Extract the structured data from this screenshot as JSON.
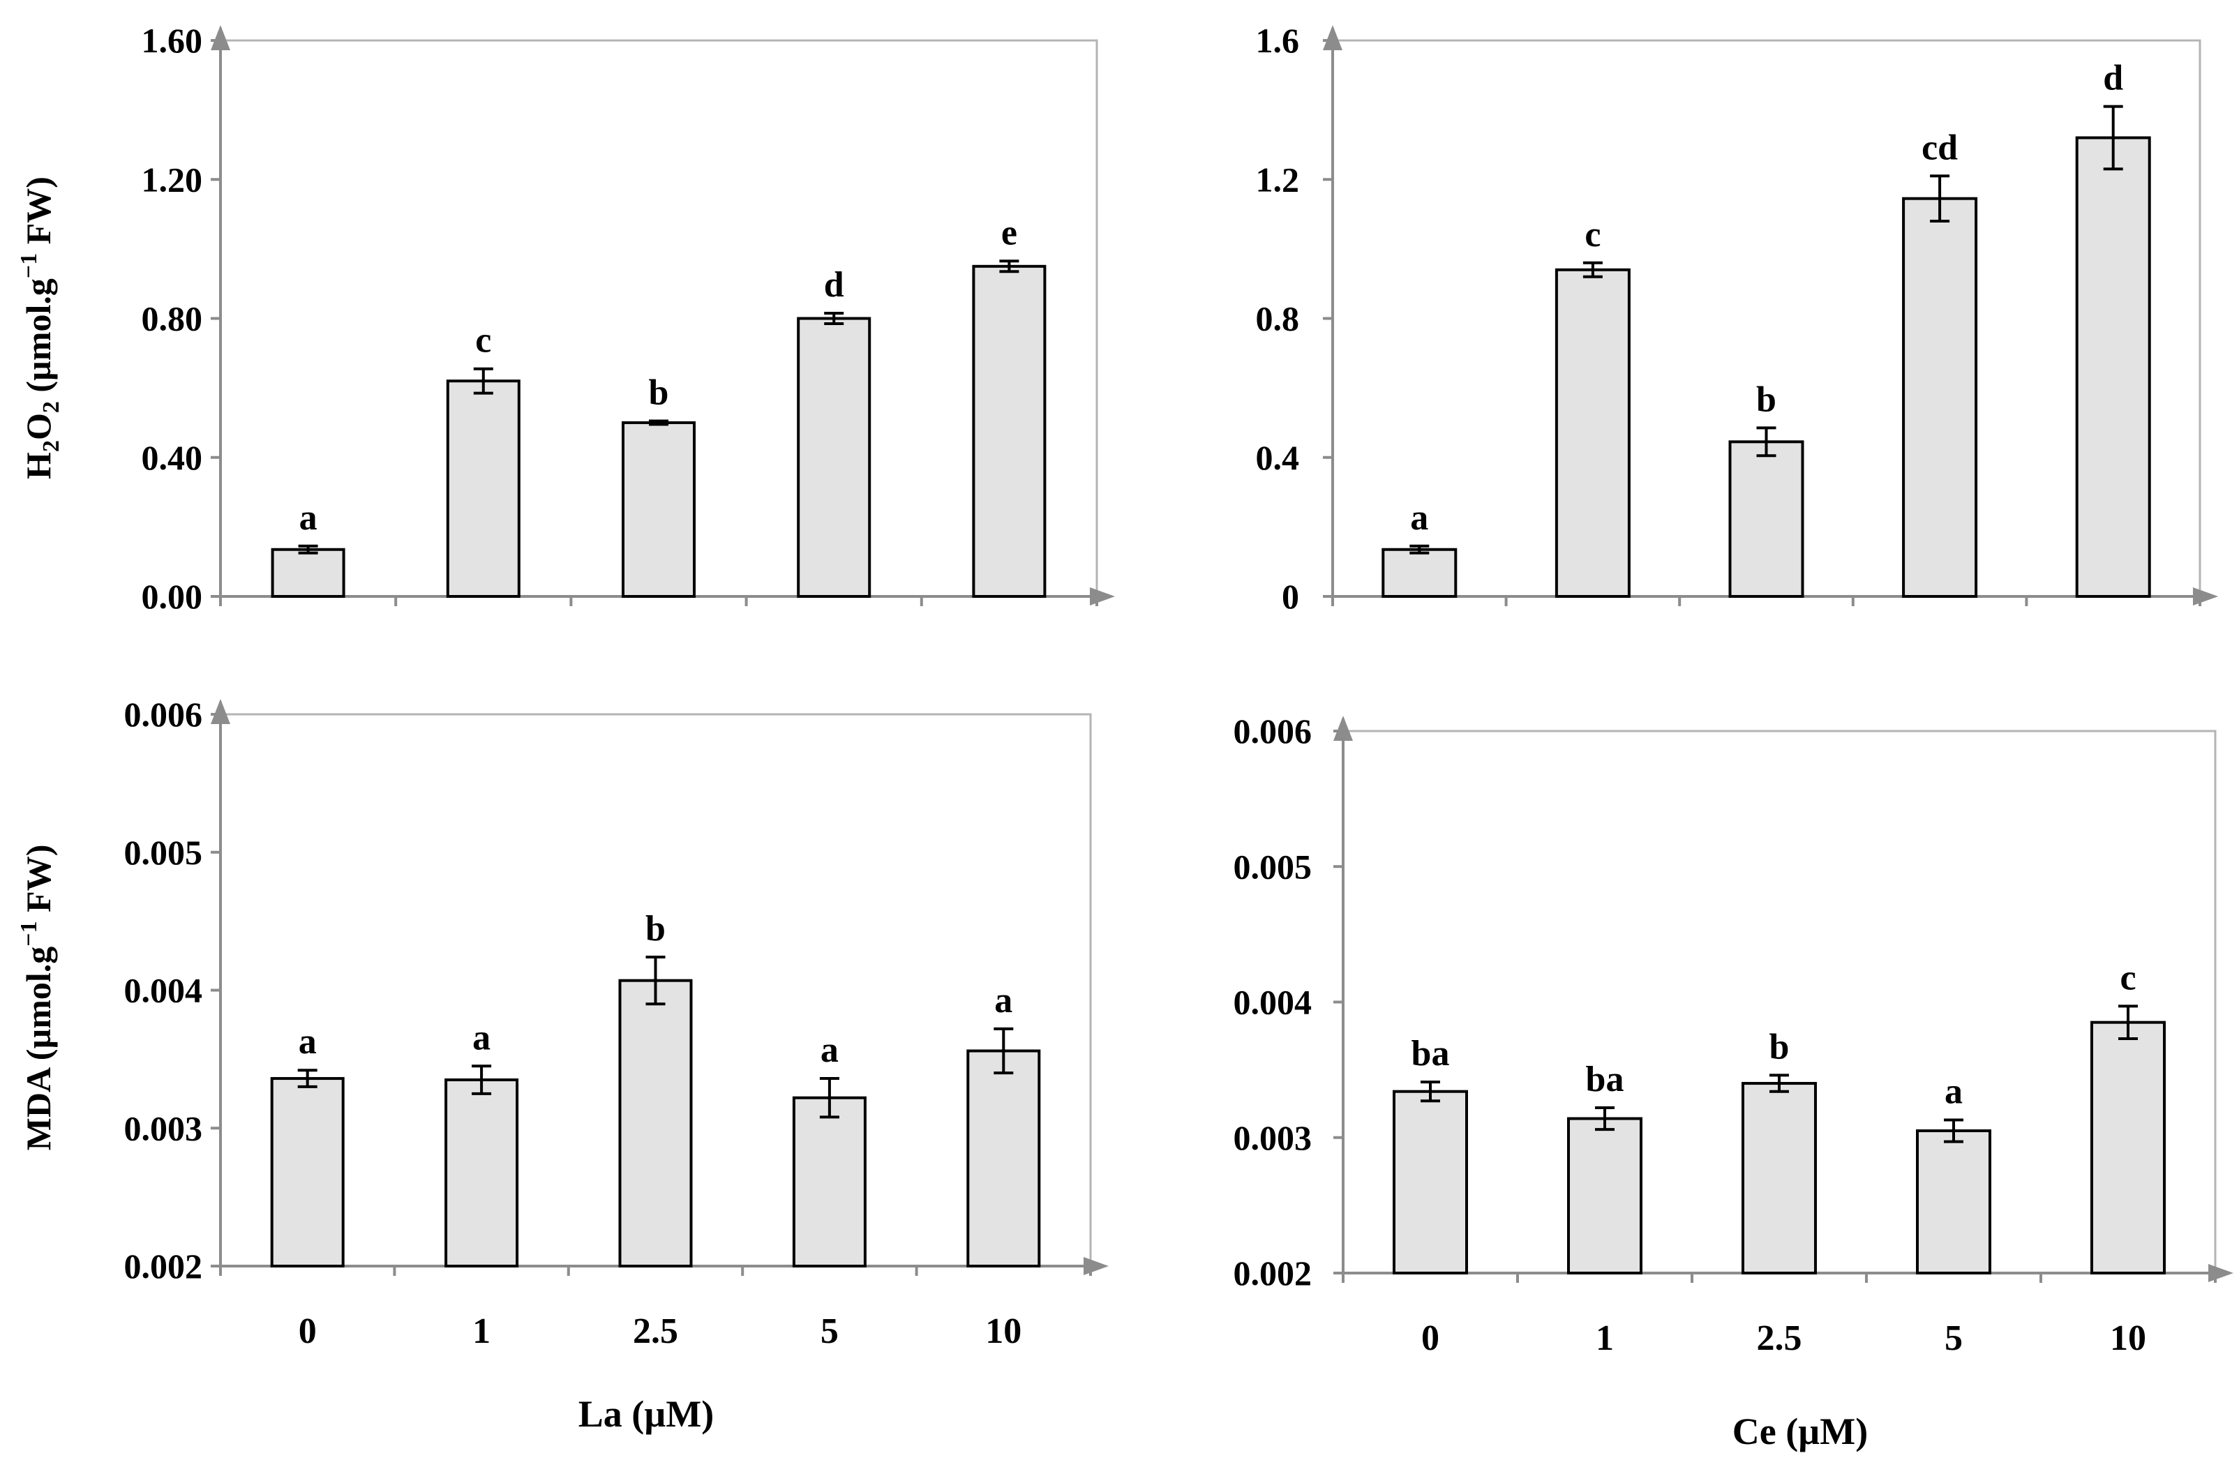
{
  "figure": {
    "x_titles": {
      "left": "La (µM)",
      "right": "Ce (µM)"
    },
    "y_titles": {
      "top": {
        "prefix": "H",
        "sub1": "2",
        "mid": "O",
        "sub2": "2",
        "main": " (µmol.g",
        "sup": "−1",
        "end": " FW)"
      },
      "bottom": {
        "main": "MDA (µmol.g",
        "sup": "−1",
        "end": " FW)"
      }
    },
    "colors": {
      "bar_fill": "#e3e3e3",
      "bar_stroke": "#000000",
      "axis": "#8c8c8c",
      "plot_border": "#b4b4b4"
    }
  },
  "chart_data": [
    {
      "id": "la-h2o2",
      "type": "bar",
      "title": "",
      "xlabel": "",
      "ylabel": "H2O2 (µmol.g−1 FW)",
      "categories": [
        "0",
        "1",
        "2.5",
        "5",
        "10"
      ],
      "show_category_labels": false,
      "values": [
        0.135,
        0.62,
        0.5,
        0.8,
        0.95
      ],
      "errors": [
        0.01,
        0.035,
        0.005,
        0.015,
        0.015
      ],
      "letters": [
        "a",
        "c",
        "b",
        "d",
        "e"
      ],
      "ylim": [
        0,
        1.6
      ],
      "yticks": [
        0,
        0.4,
        0.8,
        1.2,
        1.6
      ],
      "ytick_labels": [
        "0.00",
        "0.40",
        "0.80",
        "1.20",
        "1.60"
      ],
      "grid": false
    },
    {
      "id": "ce-h2o2",
      "type": "bar",
      "title": "",
      "xlabel": "",
      "ylabel": "",
      "categories": [
        "0",
        "1",
        "2.5",
        "5",
        "10"
      ],
      "show_category_labels": false,
      "values": [
        0.135,
        0.94,
        0.445,
        1.145,
        1.32
      ],
      "errors": [
        0.01,
        0.02,
        0.04,
        0.065,
        0.09
      ],
      "letters": [
        "a",
        "c",
        "b",
        "cd",
        "d"
      ],
      "ylim": [
        0,
        1.6
      ],
      "yticks": [
        0,
        0.4,
        0.8,
        1.2,
        1.6
      ],
      "ytick_labels": [
        "0",
        "0.4",
        "0.8",
        "1.2",
        "1.6"
      ],
      "grid": false
    },
    {
      "id": "la-mda",
      "type": "bar",
      "title": "",
      "xlabel": "La (µM)",
      "ylabel": "MDA (µmol.g−1 FW)",
      "categories": [
        "0",
        "1",
        "2.5",
        "5",
        "10"
      ],
      "show_category_labels": true,
      "values": [
        0.00336,
        0.00335,
        0.00407,
        0.00322,
        0.00356
      ],
      "errors": [
        6e-05,
        0.0001,
        0.00017,
        0.00014,
        0.00016
      ],
      "letters": [
        "a",
        "a",
        "b",
        "a",
        "a"
      ],
      "ylim": [
        0.002,
        0.006
      ],
      "yticks": [
        0.002,
        0.003,
        0.004,
        0.005,
        0.006
      ],
      "ytick_labels": [
        "0.002",
        "0.003",
        "0.004",
        "0.005",
        "0.006"
      ],
      "grid": false
    },
    {
      "id": "ce-mda",
      "type": "bar",
      "title": "",
      "xlabel": "Ce (µM)",
      "ylabel": "",
      "categories": [
        "0",
        "1",
        "2.5",
        "5",
        "10"
      ],
      "show_category_labels": true,
      "values": [
        0.00334,
        0.00314,
        0.0034,
        0.00305,
        0.00385
      ],
      "errors": [
        7e-05,
        8e-05,
        6e-05,
        8e-05,
        0.00012
      ],
      "letters": [
        "ba",
        "ba",
        "b",
        "a",
        "c"
      ],
      "ylim": [
        0.002,
        0.006
      ],
      "yticks": [
        0.002,
        0.003,
        0.004,
        0.005,
        0.006
      ],
      "ytick_labels": [
        "0.002",
        "0.003",
        "0.004",
        "0.005",
        "0.006"
      ],
      "grid": false
    }
  ]
}
